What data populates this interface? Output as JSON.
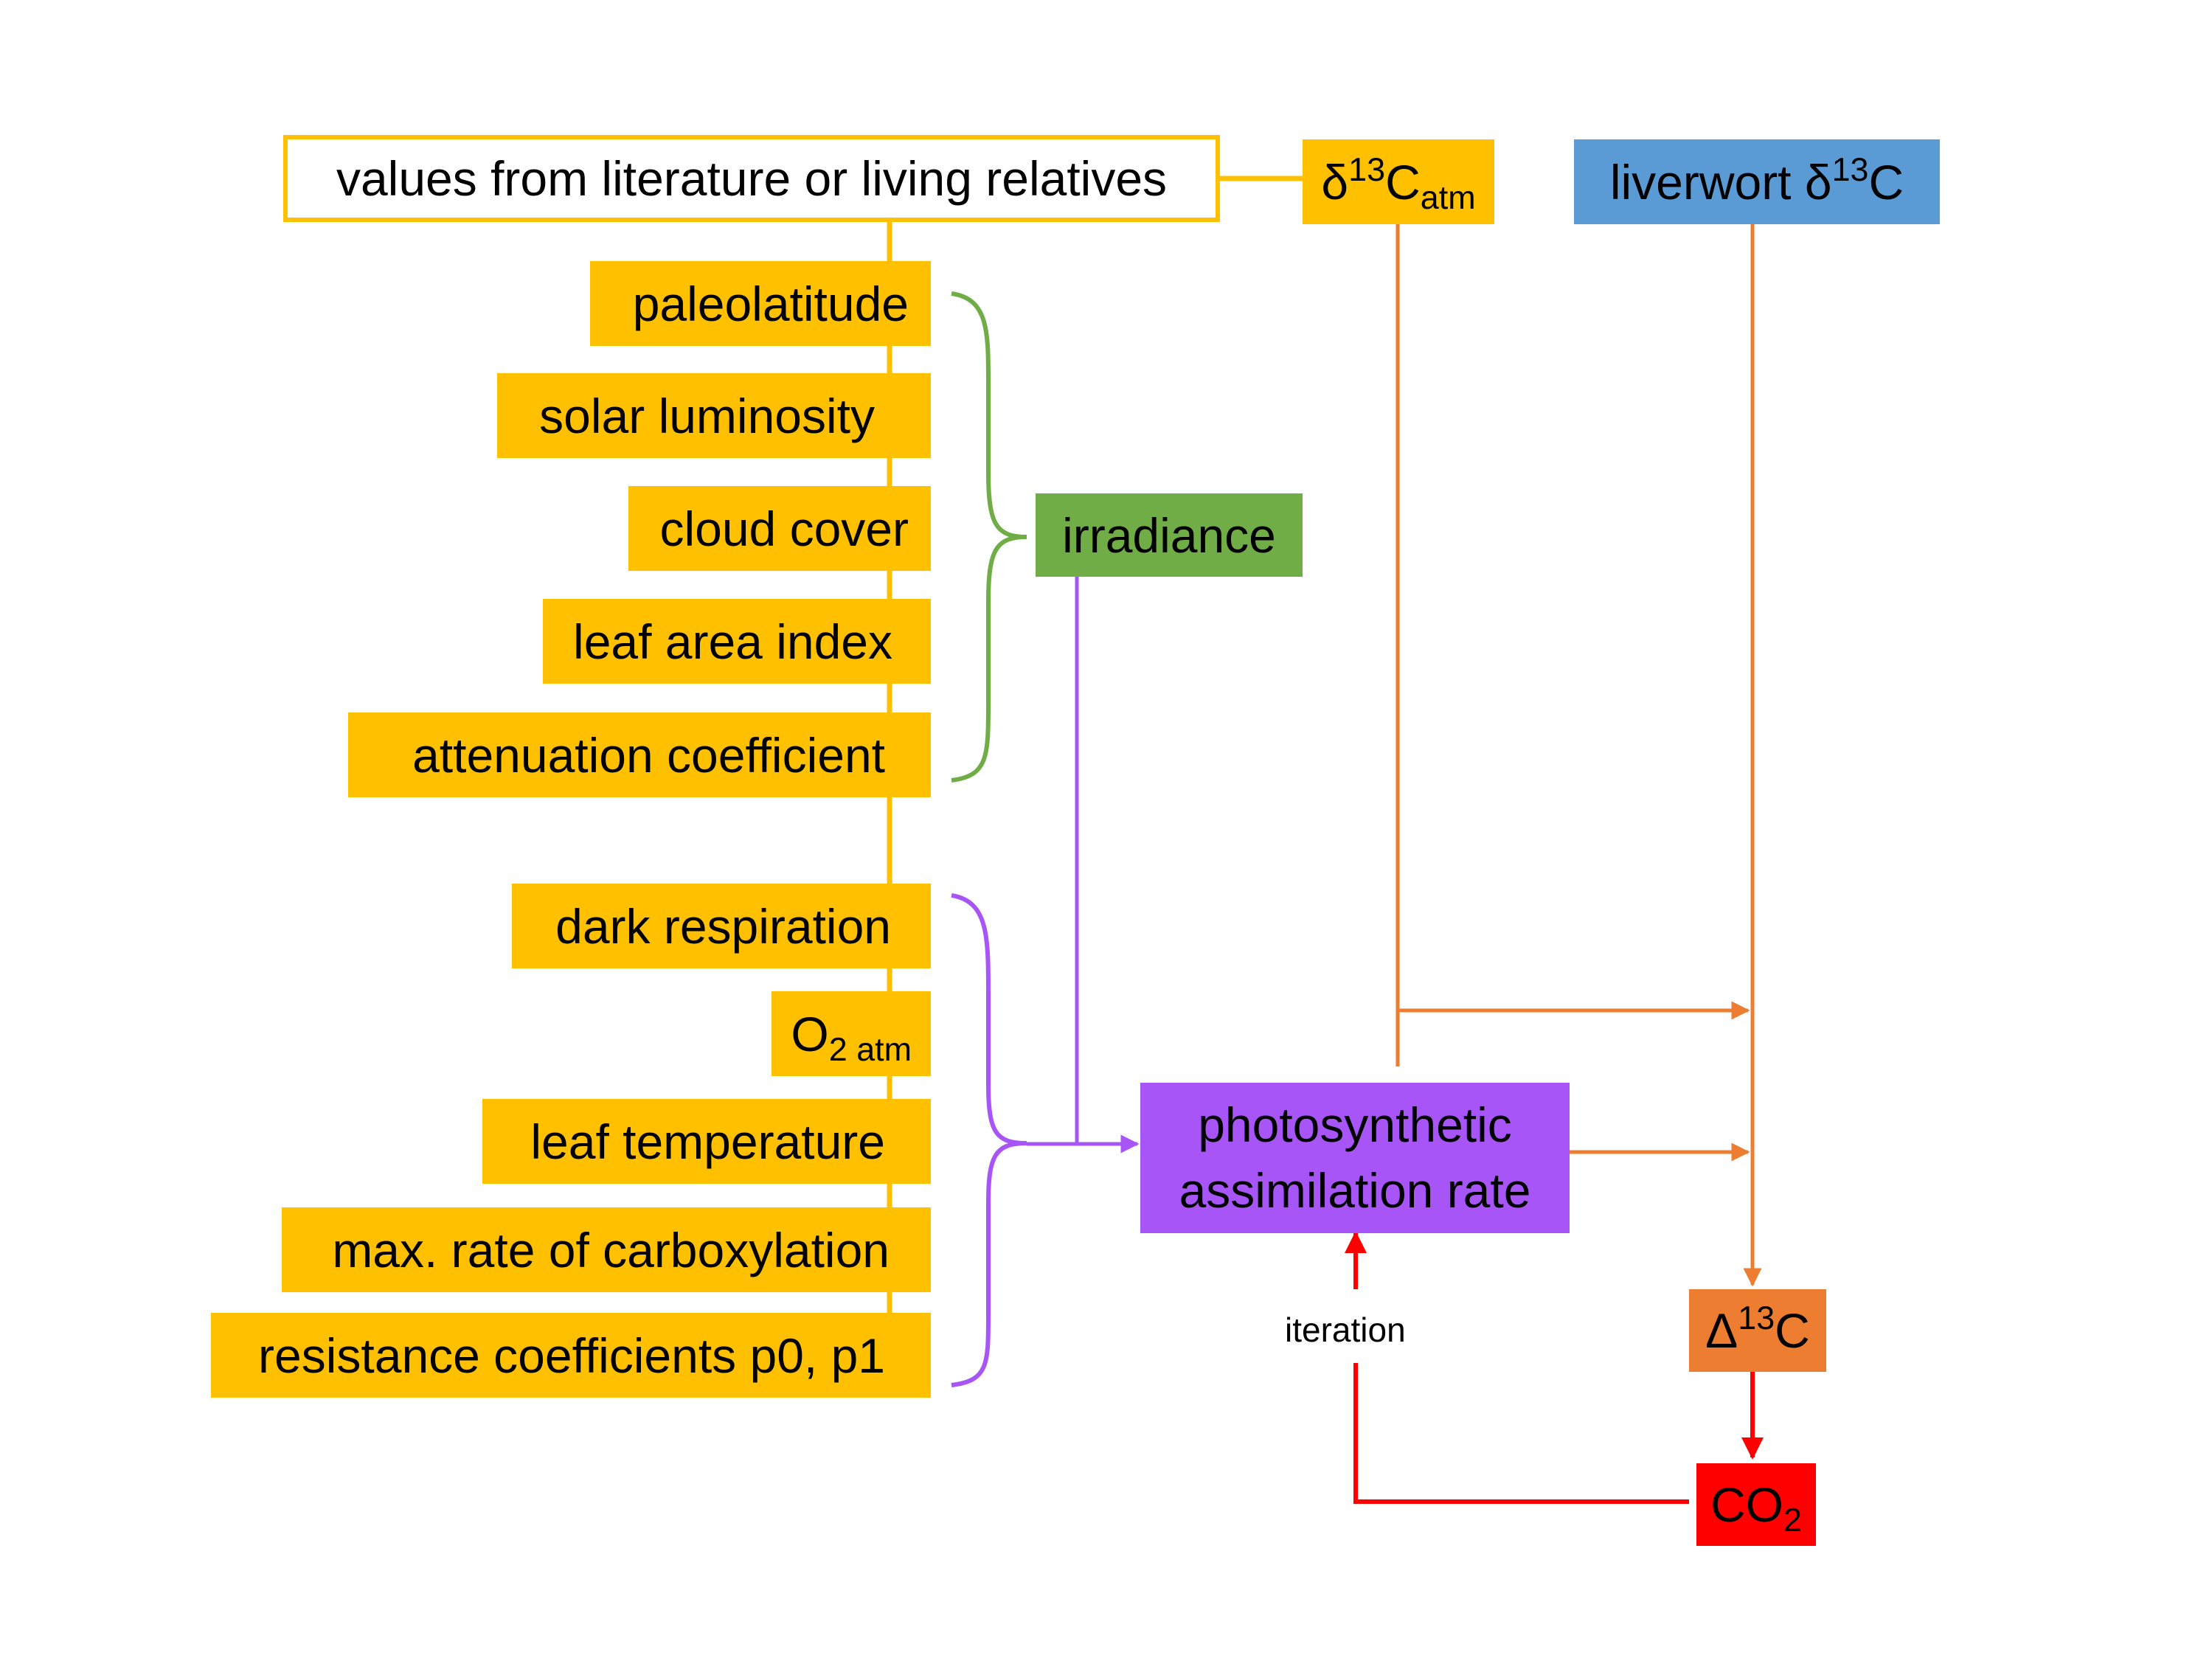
{
  "colors": {
    "parameter_box": "#FFC000",
    "liverwort_box": "#5B9BD5",
    "irradiance_box": "#70AD47",
    "photosynthesis_box": "#A855F7",
    "discrimination_box": "#ED7D31",
    "co2_box": "#FF0000",
    "green_bracket": "#70AD47",
    "purple_bracket": "#A855F7",
    "orange_arrow": "#ED7D31",
    "red_arrow": "#FF0000",
    "yellow_line": "#FFC000"
  },
  "source": {
    "label": "values from literature or living relatives"
  },
  "atm_isotope": {
    "delta": "δ",
    "sup": "13",
    "main": "C",
    "sub": "atm"
  },
  "liverwort": {
    "text": "liverwort δ",
    "sup": "13",
    "main": "C"
  },
  "irradiance_inputs": [
    "paleolatitude",
    "solar luminosity",
    "cloud cover",
    "leaf area index",
    "attenuation coefficient"
  ],
  "irradiance": {
    "label": "irradiance"
  },
  "assimilation_inputs": {
    "dark_respiration": "dark respiration",
    "o2_main": "O",
    "o2_sub": "2 atm",
    "leaf_temperature": "leaf temperature",
    "max_carboxylation": "max. rate of carboxylation",
    "resistance": "resistance coefficients p0, p1"
  },
  "photosynthesis": {
    "line1": "photosynthetic",
    "line2": "assimilation rate"
  },
  "discrimination": {
    "delta": "Δ",
    "sup": "13",
    "main": "C"
  },
  "co2": {
    "main": "CO",
    "sub": "2"
  },
  "iteration": {
    "label": "iteration"
  }
}
